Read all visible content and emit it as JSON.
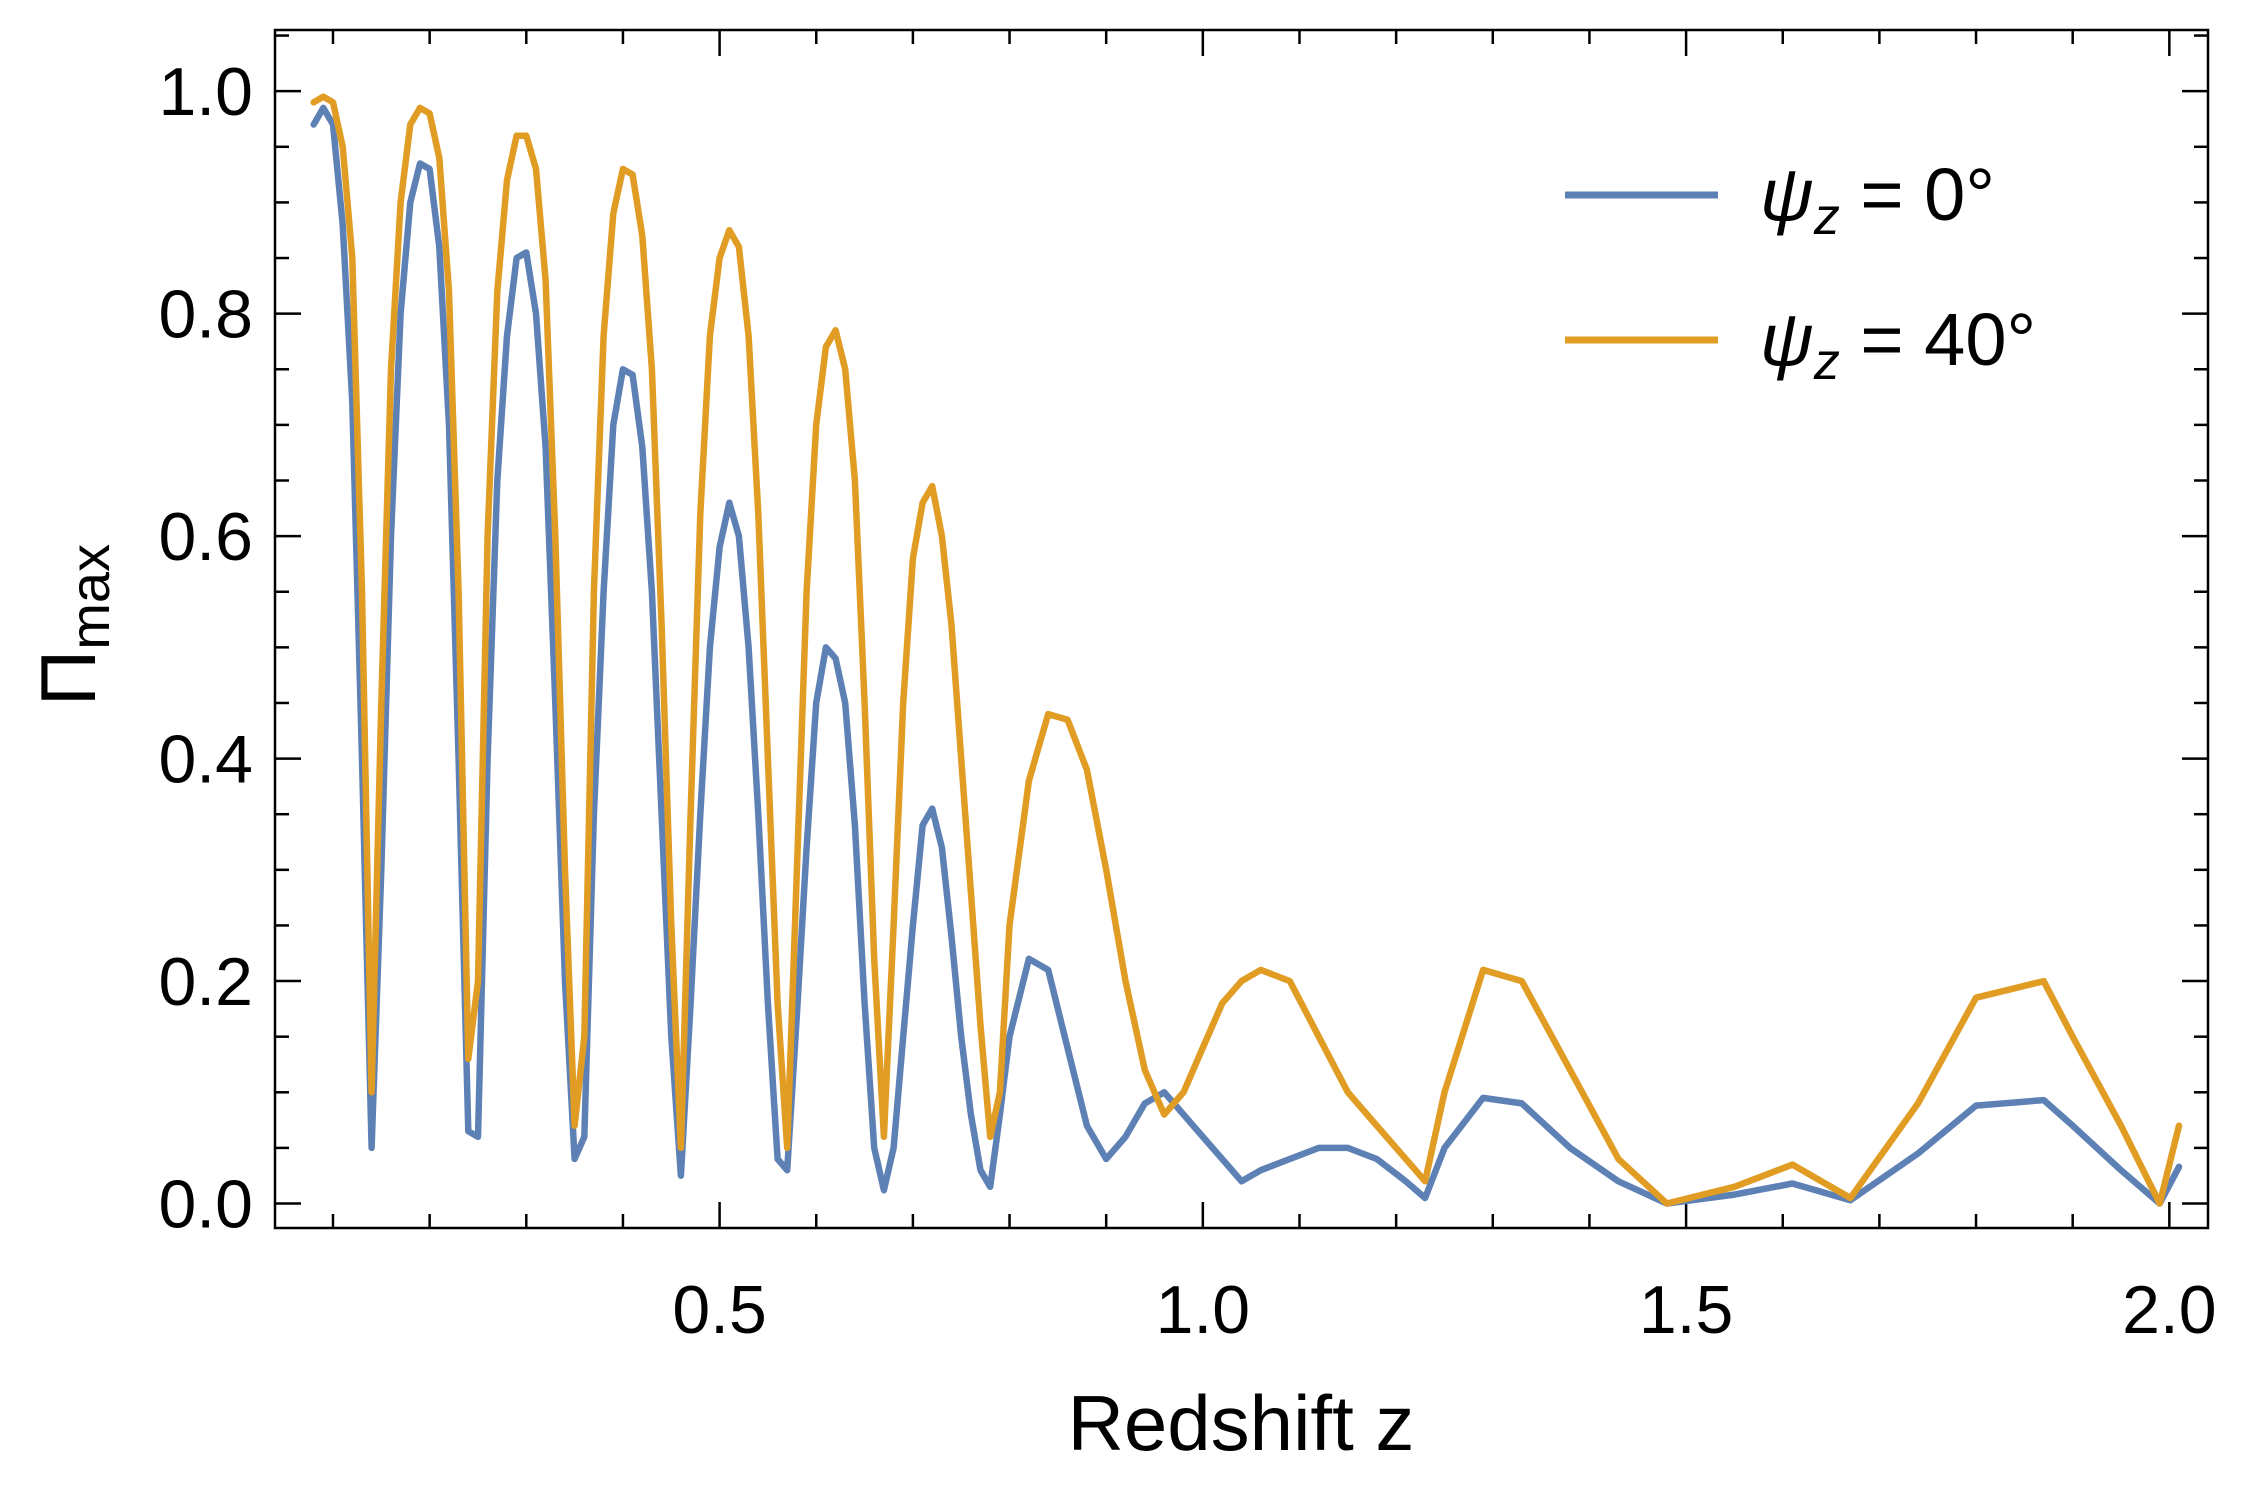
{
  "chart_data": {
    "type": "line",
    "title": "",
    "xlabel": "Redshift z",
    "ylabel_main": "Π",
    "ylabel_sub": "max",
    "xlim": [
      0.04,
      2.04
    ],
    "ylim": [
      -0.022,
      1.055
    ],
    "x_ticks": [
      0.5,
      1.0,
      1.5,
      2.0
    ],
    "x_tick_labels": [
      "0.5",
      "1.0",
      "1.5",
      "2.0"
    ],
    "y_ticks": [
      0.0,
      0.2,
      0.4,
      0.6,
      0.8,
      1.0
    ],
    "y_tick_labels": [
      "0.0",
      "0.2",
      "0.4",
      "0.6",
      "0.8",
      "1.0"
    ],
    "grid": false,
    "legend_position": "top-right",
    "series": [
      {
        "name": "ψz = 0°",
        "legend_main": "ψ",
        "legend_sub": "z",
        "legend_rest": " = 0°",
        "color": "#5E81B5",
        "x": [
          0.08,
          0.09,
          0.1,
          0.11,
          0.12,
          0.13,
          0.14,
          0.15,
          0.16,
          0.17,
          0.18,
          0.19,
          0.2,
          0.21,
          0.22,
          0.23,
          0.24,
          0.25,
          0.26,
          0.27,
          0.28,
          0.29,
          0.3,
          0.31,
          0.32,
          0.33,
          0.34,
          0.35,
          0.36,
          0.37,
          0.38,
          0.39,
          0.4,
          0.41,
          0.42,
          0.43,
          0.44,
          0.45,
          0.46,
          0.47,
          0.48,
          0.49,
          0.5,
          0.51,
          0.52,
          0.53,
          0.54,
          0.55,
          0.56,
          0.57,
          0.58,
          0.59,
          0.6,
          0.61,
          0.62,
          0.63,
          0.64,
          0.65,
          0.66,
          0.67,
          0.68,
          0.69,
          0.7,
          0.71,
          0.72,
          0.73,
          0.74,
          0.75,
          0.76,
          0.77,
          0.78,
          0.79,
          0.8,
          0.82,
          0.84,
          0.86,
          0.88,
          0.9,
          0.92,
          0.94,
          0.96,
          0.98,
          1.0,
          1.02,
          1.04,
          1.06,
          1.09,
          1.12,
          1.15,
          1.18,
          1.21,
          1.23,
          1.25,
          1.29,
          1.33,
          1.38,
          1.43,
          1.48,
          1.55,
          1.61,
          1.67,
          1.74,
          1.8,
          1.87,
          1.9,
          1.95,
          1.99,
          2.01
        ],
        "y": [
          0.97,
          0.985,
          0.97,
          0.88,
          0.72,
          0.4,
          0.05,
          0.3,
          0.6,
          0.8,
          0.9,
          0.935,
          0.93,
          0.86,
          0.7,
          0.4,
          0.065,
          0.06,
          0.4,
          0.65,
          0.78,
          0.85,
          0.855,
          0.8,
          0.68,
          0.45,
          0.2,
          0.04,
          0.06,
          0.35,
          0.55,
          0.7,
          0.75,
          0.745,
          0.68,
          0.55,
          0.35,
          0.15,
          0.025,
          0.18,
          0.35,
          0.5,
          0.59,
          0.63,
          0.6,
          0.5,
          0.35,
          0.18,
          0.04,
          0.03,
          0.17,
          0.32,
          0.45,
          0.5,
          0.49,
          0.45,
          0.34,
          0.18,
          0.05,
          0.012,
          0.05,
          0.15,
          0.25,
          0.34,
          0.355,
          0.32,
          0.24,
          0.15,
          0.08,
          0.03,
          0.015,
          0.08,
          0.15,
          0.22,
          0.21,
          0.14,
          0.07,
          0.04,
          0.06,
          0.09,
          0.1,
          0.08,
          0.06,
          0.04,
          0.02,
          0.03,
          0.04,
          0.05,
          0.05,
          0.04,
          0.02,
          0.005,
          0.05,
          0.095,
          0.09,
          0.05,
          0.02,
          0.0,
          0.008,
          0.018,
          0.003,
          0.045,
          0.088,
          0.093,
          0.07,
          0.03,
          0.0,
          0.033
        ]
      },
      {
        "name": "ψz = 40°",
        "legend_main": "ψ",
        "legend_sub": "z",
        "legend_rest": " = 40°",
        "color": "#E19C24",
        "x": [
          0.08,
          0.09,
          0.1,
          0.11,
          0.12,
          0.13,
          0.14,
          0.15,
          0.16,
          0.17,
          0.18,
          0.19,
          0.2,
          0.21,
          0.22,
          0.23,
          0.24,
          0.25,
          0.26,
          0.27,
          0.28,
          0.29,
          0.3,
          0.31,
          0.32,
          0.33,
          0.34,
          0.35,
          0.36,
          0.37,
          0.38,
          0.39,
          0.4,
          0.41,
          0.42,
          0.43,
          0.44,
          0.45,
          0.46,
          0.47,
          0.48,
          0.49,
          0.5,
          0.51,
          0.52,
          0.53,
          0.54,
          0.55,
          0.56,
          0.57,
          0.58,
          0.59,
          0.6,
          0.61,
          0.62,
          0.63,
          0.64,
          0.65,
          0.66,
          0.67,
          0.68,
          0.69,
          0.7,
          0.71,
          0.72,
          0.73,
          0.74,
          0.75,
          0.76,
          0.77,
          0.78,
          0.79,
          0.8,
          0.82,
          0.84,
          0.86,
          0.88,
          0.9,
          0.92,
          0.94,
          0.96,
          0.98,
          1.0,
          1.02,
          1.04,
          1.06,
          1.09,
          1.12,
          1.15,
          1.18,
          1.21,
          1.23,
          1.25,
          1.29,
          1.33,
          1.38,
          1.43,
          1.48,
          1.55,
          1.61,
          1.67,
          1.74,
          1.8,
          1.87,
          1.9,
          1.95,
          1.99,
          2.01
        ],
        "y": [
          0.99,
          0.995,
          0.99,
          0.95,
          0.85,
          0.55,
          0.1,
          0.45,
          0.75,
          0.9,
          0.97,
          0.985,
          0.98,
          0.94,
          0.82,
          0.55,
          0.13,
          0.2,
          0.6,
          0.82,
          0.92,
          0.96,
          0.96,
          0.93,
          0.83,
          0.6,
          0.3,
          0.07,
          0.15,
          0.55,
          0.78,
          0.89,
          0.93,
          0.925,
          0.87,
          0.75,
          0.52,
          0.25,
          0.05,
          0.35,
          0.62,
          0.78,
          0.85,
          0.875,
          0.86,
          0.78,
          0.62,
          0.4,
          0.18,
          0.05,
          0.3,
          0.55,
          0.7,
          0.77,
          0.785,
          0.75,
          0.65,
          0.45,
          0.22,
          0.06,
          0.25,
          0.45,
          0.58,
          0.63,
          0.645,
          0.6,
          0.52,
          0.4,
          0.28,
          0.16,
          0.06,
          0.1,
          0.25,
          0.38,
          0.44,
          0.435,
          0.39,
          0.3,
          0.2,
          0.12,
          0.08,
          0.1,
          0.14,
          0.18,
          0.2,
          0.21,
          0.2,
          0.15,
          0.1,
          0.07,
          0.04,
          0.02,
          0.1,
          0.21,
          0.2,
          0.12,
          0.04,
          0.0,
          0.015,
          0.035,
          0.005,
          0.09,
          0.185,
          0.2,
          0.15,
          0.07,
          0.0,
          0.07
        ]
      }
    ]
  }
}
